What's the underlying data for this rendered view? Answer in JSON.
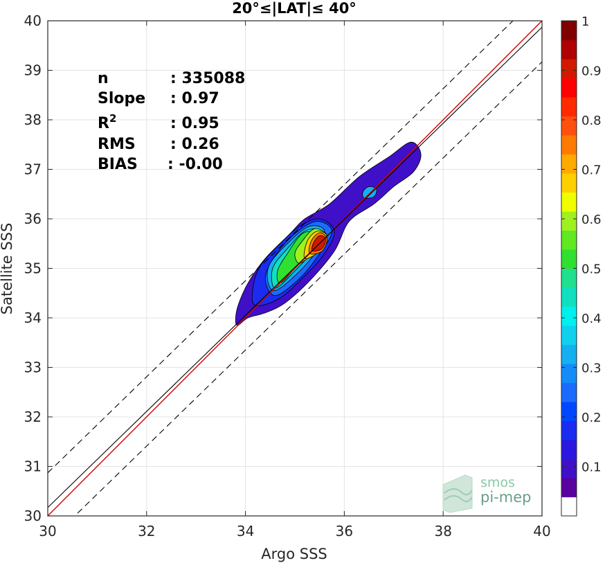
{
  "chart_data": {
    "type": "heatmap",
    "title": "20°≤|LAT|≤ 40°",
    "xlabel": "Argo SSS",
    "ylabel": "Satellite SSS",
    "xlim": [
      30,
      40
    ],
    "ylim": [
      30,
      40
    ],
    "x_ticks": [
      30,
      32,
      34,
      36,
      38,
      40
    ],
    "y_ticks": [
      30,
      31,
      32,
      33,
      34,
      35,
      36,
      37,
      38,
      39,
      40
    ],
    "grid": true,
    "stats": [
      {
        "label": "n",
        "value": ": 335088"
      },
      {
        "label": "Slope",
        "value": ": 0.97"
      },
      {
        "label": "R",
        "sup": "2",
        "value": ": 0.95"
      },
      {
        "label": "RMS",
        "value": ": 0.26"
      },
      {
        "label": "BIAS",
        "value": ": -0.00"
      }
    ],
    "reference_lines": [
      {
        "name": "one-to-one",
        "style": "red solid",
        "slope": 1,
        "intercept": 0
      },
      {
        "name": "regression",
        "style": "black solid",
        "slope": 0.97,
        "intercept": 1.07
      },
      {
        "name": "upper bound",
        "style": "black dashed",
        "slope": 0.97,
        "intercept": 1.77
      },
      {
        "name": "lower bound",
        "style": "black dashed",
        "slope": 0.97,
        "intercept": 0.37
      }
    ],
    "density_levels": [
      {
        "level": 0.05,
        "color": "#3f10c8",
        "outline": [
          [
            33.85,
            33.85
          ],
          [
            34.05,
            34.0
          ],
          [
            34.4,
            34.1
          ],
          [
            34.8,
            34.3
          ],
          [
            35.3,
            34.75
          ],
          [
            35.8,
            35.35
          ],
          [
            36.1,
            35.95
          ],
          [
            36.6,
            36.3
          ],
          [
            37.0,
            36.65
          ],
          [
            37.4,
            36.95
          ],
          [
            37.55,
            37.3
          ],
          [
            37.35,
            37.55
          ],
          [
            36.9,
            37.25
          ],
          [
            36.3,
            36.85
          ],
          [
            35.7,
            36.3
          ],
          [
            35.2,
            36.0
          ],
          [
            34.9,
            35.7
          ],
          [
            34.4,
            35.2
          ],
          [
            34.05,
            34.7
          ],
          [
            33.85,
            34.25
          ],
          [
            33.8,
            33.95
          ]
        ]
      },
      {
        "level": 0.1,
        "color": "#1a2cf0",
        "outline": [
          [
            34.2,
            34.25
          ],
          [
            34.7,
            34.4
          ],
          [
            35.2,
            34.85
          ],
          [
            35.6,
            35.3
          ],
          [
            35.8,
            35.75
          ],
          [
            35.5,
            36.0
          ],
          [
            35.1,
            35.85
          ],
          [
            34.7,
            35.5
          ],
          [
            34.3,
            35.05
          ],
          [
            34.15,
            34.6
          ]
        ]
      },
      {
        "level": 0.2,
        "color": "#1a6cff",
        "outline": [
          [
            34.6,
            34.45
          ],
          [
            35.1,
            34.8
          ],
          [
            35.5,
            35.3
          ],
          [
            35.75,
            35.75
          ],
          [
            35.45,
            35.95
          ],
          [
            35.0,
            35.7
          ],
          [
            34.6,
            35.25
          ],
          [
            34.4,
            34.8
          ]
        ]
      },
      {
        "level": 0.3,
        "color": "#14b0f0",
        "outline": [
          [
            34.6,
            34.55
          ],
          [
            35.0,
            34.85
          ],
          [
            35.4,
            35.3
          ],
          [
            35.6,
            35.75
          ],
          [
            35.3,
            35.85
          ],
          [
            34.9,
            35.55
          ],
          [
            34.5,
            35.1
          ],
          [
            34.45,
            34.75
          ]
        ]
      },
      {
        "level": 0.4,
        "color": "#10e0c0",
        "outline": [
          [
            34.6,
            34.6
          ],
          [
            35.0,
            34.95
          ],
          [
            35.35,
            35.35
          ],
          [
            35.5,
            35.75
          ],
          [
            35.2,
            35.75
          ],
          [
            34.85,
            35.4
          ],
          [
            34.55,
            35.0
          ]
        ]
      },
      {
        "level": 0.5,
        "color": "#30e030",
        "outline": [
          [
            34.7,
            34.7
          ],
          [
            35.0,
            35.0
          ],
          [
            35.3,
            35.35
          ],
          [
            35.45,
            35.7
          ],
          [
            35.15,
            35.7
          ],
          [
            34.85,
            35.3
          ],
          [
            34.65,
            34.95
          ]
        ]
      },
      {
        "level": 0.6,
        "color": "#a0f020",
        "outline": [
          [
            35.1,
            35.1
          ],
          [
            35.4,
            35.35
          ],
          [
            35.65,
            35.65
          ],
          [
            35.4,
            35.8
          ],
          [
            35.15,
            35.55
          ],
          [
            35.0,
            35.3
          ]
        ]
      },
      {
        "level": 0.7,
        "color": "#ffd000",
        "outline": [
          [
            35.2,
            35.2
          ],
          [
            35.5,
            35.35
          ],
          [
            35.65,
            35.65
          ],
          [
            35.45,
            35.75
          ],
          [
            35.25,
            35.55
          ]
        ]
      },
      {
        "level": 0.8,
        "color": "#ff7a00",
        "outline": [
          [
            35.3,
            35.3
          ],
          [
            35.55,
            35.35
          ],
          [
            35.65,
            35.6
          ],
          [
            35.5,
            35.72
          ],
          [
            35.33,
            35.55
          ]
        ]
      },
      {
        "level": 0.9,
        "color": "#d01a00",
        "outline": [
          [
            35.35,
            35.35
          ],
          [
            35.55,
            35.4
          ],
          [
            35.62,
            35.6
          ],
          [
            35.5,
            35.66
          ],
          [
            35.38,
            35.52
          ]
        ]
      },
      {
        "level": 0.3,
        "color": "#14b0f0",
        "outline": [
          [
            36.4,
            36.42
          ],
          [
            36.6,
            36.45
          ],
          [
            36.65,
            36.6
          ],
          [
            36.5,
            36.65
          ],
          [
            36.38,
            36.55
          ]
        ]
      }
    ],
    "colorbar": {
      "ticks": [
        0.1,
        0.2,
        0.3,
        0.4,
        0.5,
        0.6,
        0.7,
        0.8,
        0.9,
        1
      ],
      "tick_labels": [
        "0.1",
        "0.2",
        "0.3",
        "0.4",
        "0.5",
        "0.6",
        "0.7",
        "0.8",
        "0.9",
        "1"
      ],
      "range": [
        0,
        1
      ],
      "colors": [
        "#ffffff",
        "#5a00a0",
        "#3f10c8",
        "#2a18e0",
        "#1a2cf0",
        "#0048ff",
        "#1a6cff",
        "#148cf8",
        "#14b0f0",
        "#10d0f0",
        "#00f0f0",
        "#10e0c0",
        "#20e090",
        "#30e030",
        "#60e820",
        "#a0f020",
        "#f0ff00",
        "#ffd000",
        "#ffaa00",
        "#ff7a00",
        "#ff5010",
        "#ff2a00",
        "#ff0000",
        "#d01a00",
        "#b00000",
        "#800000"
      ]
    }
  },
  "logo": {
    "line1": "smos",
    "line2": "pi-mep"
  }
}
